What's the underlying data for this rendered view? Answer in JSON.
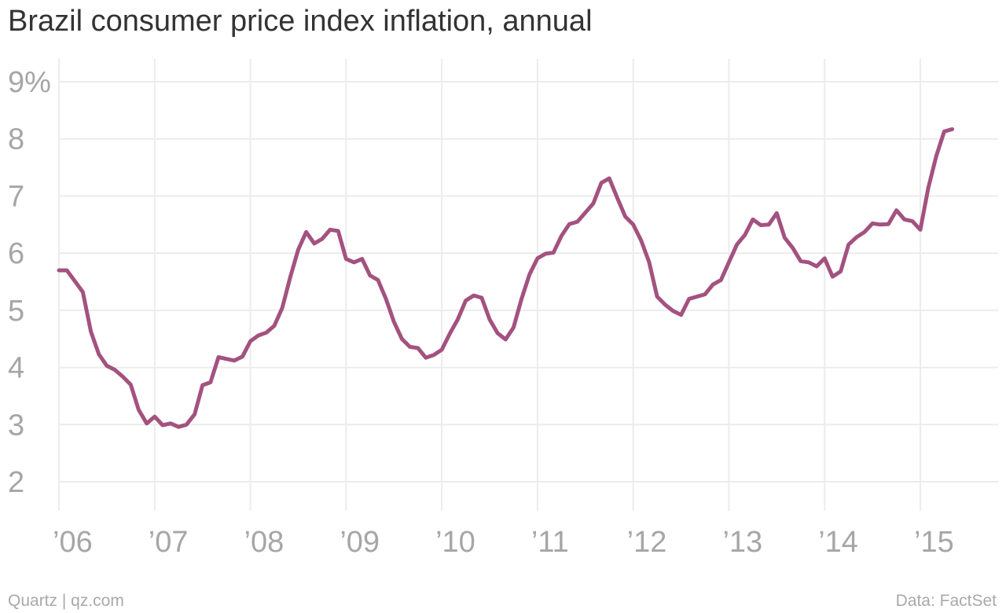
{
  "chart_data": {
    "type": "line",
    "title": "Brazil consumer price index inflation, annual",
    "xlabel": "",
    "ylabel": "",
    "y_tick_labels": [
      "2",
      "3",
      "4",
      "5",
      "6",
      "7",
      "8",
      "9%"
    ],
    "y_ticks": [
      2,
      3,
      4,
      5,
      6,
      7,
      8,
      9
    ],
    "ylim": [
      1.5,
      9.4
    ],
    "x_tick_labels": [
      "’06",
      "’07",
      "’08",
      "’09",
      "’10",
      "’11",
      "’12",
      "’13",
      "’14",
      "’15"
    ],
    "x_ticks": [
      2006,
      2007,
      2008,
      2009,
      2010,
      2011,
      2012,
      2013,
      2014,
      2015
    ],
    "xlim": [
      2005.75,
      2015.7
    ],
    "grid": true,
    "legend": "none",
    "series": [
      {
        "color": "#a3527f",
        "points": [
          [
            2006.0,
            5.7
          ],
          [
            2006.083,
            5.7
          ],
          [
            2006.167,
            5.51
          ],
          [
            2006.25,
            5.32
          ],
          [
            2006.333,
            4.63
          ],
          [
            2006.417,
            4.23
          ],
          [
            2006.5,
            4.03
          ],
          [
            2006.583,
            3.96
          ],
          [
            2006.667,
            3.84
          ],
          [
            2006.75,
            3.7
          ],
          [
            2006.833,
            3.26
          ],
          [
            2006.917,
            3.02
          ],
          [
            2007.0,
            3.14
          ],
          [
            2007.083,
            2.99
          ],
          [
            2007.167,
            3.02
          ],
          [
            2007.25,
            2.96
          ],
          [
            2007.333,
            3.0
          ],
          [
            2007.417,
            3.18
          ],
          [
            2007.5,
            3.69
          ],
          [
            2007.583,
            3.74
          ],
          [
            2007.667,
            4.18
          ],
          [
            2007.75,
            4.15
          ],
          [
            2007.833,
            4.12
          ],
          [
            2007.917,
            4.19
          ],
          [
            2008.0,
            4.46
          ],
          [
            2008.083,
            4.56
          ],
          [
            2008.167,
            4.61
          ],
          [
            2008.25,
            4.73
          ],
          [
            2008.333,
            5.04
          ],
          [
            2008.417,
            5.58
          ],
          [
            2008.5,
            6.06
          ],
          [
            2008.583,
            6.37
          ],
          [
            2008.667,
            6.17
          ],
          [
            2008.75,
            6.25
          ],
          [
            2008.833,
            6.41
          ],
          [
            2008.917,
            6.39
          ],
          [
            2009.0,
            5.9
          ],
          [
            2009.083,
            5.84
          ],
          [
            2009.167,
            5.9
          ],
          [
            2009.25,
            5.61
          ],
          [
            2009.333,
            5.53
          ],
          [
            2009.417,
            5.2
          ],
          [
            2009.5,
            4.8
          ],
          [
            2009.583,
            4.5
          ],
          [
            2009.667,
            4.36
          ],
          [
            2009.75,
            4.34
          ],
          [
            2009.833,
            4.17
          ],
          [
            2009.917,
            4.22
          ],
          [
            2010.0,
            4.31
          ],
          [
            2010.083,
            4.59
          ],
          [
            2010.167,
            4.84
          ],
          [
            2010.25,
            5.17
          ],
          [
            2010.333,
            5.26
          ],
          [
            2010.417,
            5.22
          ],
          [
            2010.5,
            4.84
          ],
          [
            2010.583,
            4.6
          ],
          [
            2010.667,
            4.49
          ],
          [
            2010.75,
            4.7
          ],
          [
            2010.833,
            5.2
          ],
          [
            2010.917,
            5.63
          ],
          [
            2011.0,
            5.91
          ],
          [
            2011.083,
            5.99
          ],
          [
            2011.167,
            6.01
          ],
          [
            2011.25,
            6.3
          ],
          [
            2011.333,
            6.51
          ],
          [
            2011.417,
            6.55
          ],
          [
            2011.5,
            6.71
          ],
          [
            2011.583,
            6.87
          ],
          [
            2011.667,
            7.23
          ],
          [
            2011.75,
            7.31
          ],
          [
            2011.833,
            6.97
          ],
          [
            2011.917,
            6.64
          ],
          [
            2012.0,
            6.5
          ],
          [
            2012.083,
            6.22
          ],
          [
            2012.167,
            5.84
          ],
          [
            2012.25,
            5.24
          ],
          [
            2012.333,
            5.1
          ],
          [
            2012.417,
            4.99
          ],
          [
            2012.5,
            4.92
          ],
          [
            2012.583,
            5.2
          ],
          [
            2012.667,
            5.24
          ],
          [
            2012.75,
            5.28
          ],
          [
            2012.833,
            5.45
          ],
          [
            2012.917,
            5.53
          ],
          [
            2013.0,
            5.84
          ],
          [
            2013.083,
            6.15
          ],
          [
            2013.167,
            6.32
          ],
          [
            2013.25,
            6.59
          ],
          [
            2013.333,
            6.49
          ],
          [
            2013.417,
            6.5
          ],
          [
            2013.5,
            6.7
          ],
          [
            2013.583,
            6.27
          ],
          [
            2013.667,
            6.09
          ],
          [
            2013.75,
            5.86
          ],
          [
            2013.833,
            5.84
          ],
          [
            2013.917,
            5.77
          ],
          [
            2014.0,
            5.91
          ],
          [
            2014.083,
            5.59
          ],
          [
            2014.167,
            5.68
          ],
          [
            2014.25,
            6.15
          ],
          [
            2014.333,
            6.28
          ],
          [
            2014.417,
            6.37
          ],
          [
            2014.5,
            6.52
          ],
          [
            2014.583,
            6.5
          ],
          [
            2014.667,
            6.51
          ],
          [
            2014.75,
            6.75
          ],
          [
            2014.833,
            6.59
          ],
          [
            2014.917,
            6.56
          ],
          [
            2015.0,
            6.41
          ],
          [
            2015.083,
            7.14
          ],
          [
            2015.167,
            7.7
          ],
          [
            2015.25,
            8.13
          ],
          [
            2015.333,
            8.17
          ]
        ]
      }
    ]
  },
  "footer": {
    "left": "Quartz | qz.com",
    "right": "Data: FactSet"
  }
}
